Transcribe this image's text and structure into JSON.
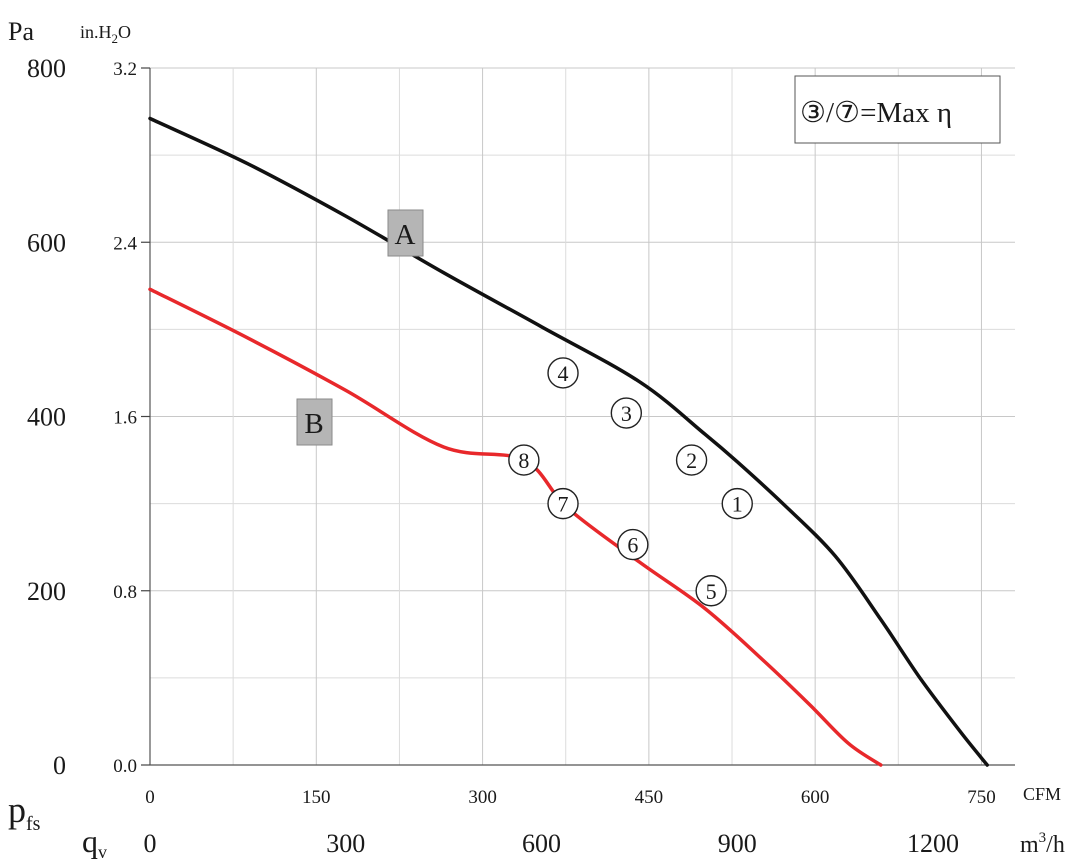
{
  "chart_data": {
    "type": "line",
    "title": "",
    "y_labels": {
      "primary_unit": "Pa",
      "secondary_unit_base": "in.H",
      "secondary_unit_sub": "2",
      "secondary_unit_tail": "O",
      "symbol_main": "p",
      "symbol_sub": "fs"
    },
    "x_labels": {
      "cfm_unit": "CFM",
      "m3h_unit_base": "m",
      "m3h_unit_sup": "3",
      "m3h_unit_tail": "/h",
      "symbol_main": "q",
      "symbol_sub": "v"
    },
    "ylim_pa": [
      0,
      800
    ],
    "xlim_m3h": [
      0,
      1400
    ],
    "y_ticks_pa": [
      "0",
      "200",
      "400",
      "600",
      "800"
    ],
    "y_ticks_inh2o": [
      "0.0",
      "0.8",
      "1.6",
      "2.4",
      "3.2"
    ],
    "x_ticks_cfm": [
      "0",
      "150",
      "300",
      "450",
      "600",
      "750"
    ],
    "x_ticks_m3h": [
      "0",
      "300",
      "600",
      "900",
      "1200"
    ],
    "grid": true,
    "legend_box": {
      "text_a": "③/⑦",
      "text_b": "=Max η",
      "position": "top-right"
    },
    "series": [
      {
        "name": "A",
        "color": "#111111",
        "x_m3h": [
          0,
          150,
          300,
          450,
          600,
          750,
          850,
          900,
          970,
          1050,
          1120,
          1180,
          1240,
          1283
        ],
        "y_pa": [
          742,
          690,
          630,
          565,
          503,
          440,
          380,
          348,
          300,
          240,
          167,
          100,
          40,
          0
        ],
        "markers": [
          {
            "label": "1",
            "x": 900,
            "y": 300
          },
          {
            "label": "2",
            "x": 830,
            "y": 350
          },
          {
            "label": "3",
            "x": 730,
            "y": 404
          },
          {
            "label": "4",
            "x": 633,
            "y": 450
          }
        ]
      },
      {
        "name": "B",
        "color": "#e8282b",
        "x_m3h": [
          0,
          150,
          300,
          450,
          573,
          640,
          750,
          850,
          940,
          1010,
          1070,
          1120
        ],
        "y_pa": [
          546,
          490,
          430,
          365,
          350,
          295,
          233,
          180,
          120,
          70,
          25,
          0
        ],
        "markers": [
          {
            "label": "5",
            "x": 860,
            "y": 200
          },
          {
            "label": "6",
            "x": 740,
            "y": 253
          },
          {
            "label": "7",
            "x": 633,
            "y": 300
          },
          {
            "label": "8",
            "x": 573,
            "y": 350
          }
        ]
      }
    ]
  }
}
